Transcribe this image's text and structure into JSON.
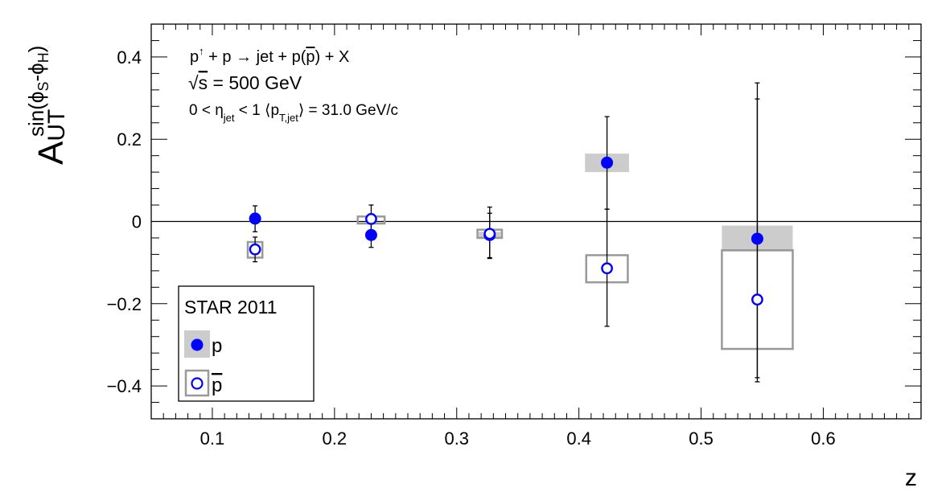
{
  "chart_data": {
    "type": "scatter",
    "xlabel": "z",
    "ylabel_main": "A",
    "ylabel_sub": "UT",
    "ylabel_sup": "sin(ϕ",
    "ylabel_sup_s": "S",
    "ylabel_sup_mid": "-ϕ",
    "ylabel_sup_h": "H",
    "ylabel_sup_end": ")",
    "xlim": [
      0.05,
      0.68
    ],
    "ylim": [
      -0.48,
      0.48
    ],
    "xticks": [
      0.1,
      0.2,
      0.3,
      0.4,
      0.5,
      0.6
    ],
    "xtick_labels": [
      "0.1",
      "0.2",
      "0.3",
      "0.4",
      "0.5",
      "0.6"
    ],
    "yticks": [
      0.4,
      0.2,
      0,
      -0.2,
      -0.4
    ],
    "ytick_labels": [
      "0.4",
      "0.2",
      "0",
      "−0.2",
      "−0.4"
    ],
    "zero_line": true,
    "annotations": {
      "process": {
        "p1": "p",
        "arrow_up": "↑",
        "p2": " + p → jet + p(",
        "pbar": "p",
        "p3": ") + X"
      },
      "energy": {
        "sqrt": "√",
        "s": "s",
        "rest": " = 500 GeV"
      },
      "kinematics": {
        "k1": "0 < η",
        "jet1": "jet",
        "k2": " < 1 ⟨p",
        "tjet": "T,jet",
        "k3": "⟩ = 31.0 GeV/c"
      }
    },
    "legend": {
      "title": "STAR 2011",
      "position": "bottom-left",
      "entries": [
        "p",
        "p"
      ]
    },
    "series": [
      {
        "name": "p",
        "marker": "filled-circle",
        "color": "#0000ff",
        "box_color": "#cccccc",
        "points": [
          {
            "x": 0.135,
            "y": 0.007,
            "stat_lo": -0.025,
            "stat_hi": 0.038,
            "sys_lo": 0.007,
            "sys_hi": 0.007,
            "box_hw": 0.0
          },
          {
            "x": 0.23,
            "y": -0.033,
            "stat_lo": -0.063,
            "stat_hi": -0.003,
            "sys_lo": -0.036,
            "sys_hi": -0.03,
            "box_hw": 0.0
          },
          {
            "x": 0.327,
            "y": -0.033,
            "stat_lo": -0.088,
            "stat_hi": 0.02,
            "sys_lo": -0.04,
            "sys_hi": -0.025,
            "box_hw": 0.009
          },
          {
            "x": 0.423,
            "y": 0.143,
            "stat_lo": 0.03,
            "stat_hi": 0.255,
            "sys_lo": 0.12,
            "sys_hi": 0.165,
            "box_hw": 0.018
          },
          {
            "x": 0.546,
            "y": -0.042,
            "stat_lo": -0.38,
            "stat_hi": 0.298,
            "sys_lo": -0.073,
            "sys_hi": -0.01,
            "box_hw": 0.029
          }
        ]
      },
      {
        "name": "p",
        "name_overbar": true,
        "marker": "open-circle",
        "color": "#0000ff",
        "box_color": "#999999",
        "points": [
          {
            "x": 0.135,
            "y": -0.068,
            "stat_lo": -0.098,
            "stat_hi": -0.038,
            "sys_lo": -0.088,
            "sys_hi": -0.05,
            "box_hw": 0.006
          },
          {
            "x": 0.23,
            "y": 0.006,
            "stat_lo": -0.028,
            "stat_hi": 0.04,
            "sys_lo": -0.005,
            "sys_hi": 0.012,
            "box_hw": 0.011
          },
          {
            "x": 0.327,
            "y": -0.03,
            "stat_lo": -0.09,
            "stat_hi": 0.035,
            "sys_lo": -0.04,
            "sys_hi": -0.02,
            "box_hw": 0.01
          },
          {
            "x": 0.423,
            "y": -0.114,
            "stat_lo": -0.255,
            "stat_hi": 0.03,
            "sys_lo": -0.148,
            "sys_hi": -0.082,
            "box_hw": 0.017
          },
          {
            "x": 0.546,
            "y": -0.19,
            "stat_lo": -0.39,
            "stat_hi": 0.337,
            "sys_lo": -0.31,
            "sys_hi": -0.07,
            "box_hw": 0.029
          }
        ]
      }
    ]
  }
}
